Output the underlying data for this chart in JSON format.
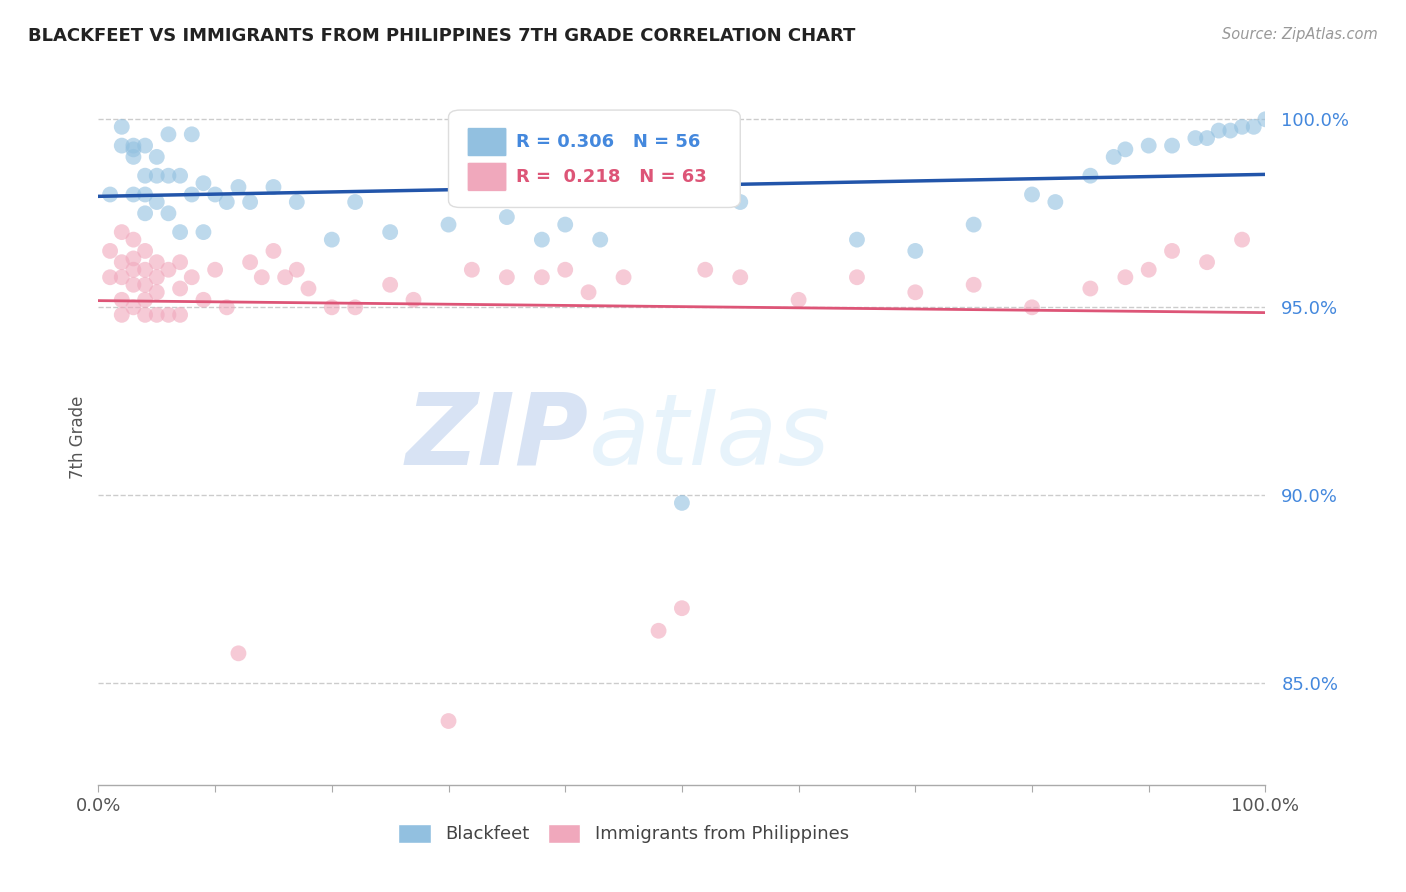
{
  "title": "BLACKFEET VS IMMIGRANTS FROM PHILIPPINES 7TH GRADE CORRELATION CHART",
  "source_text": "Source: ZipAtlas.com",
  "ylabel": "7th Grade",
  "watermark_zip": "ZIP",
  "watermark_atlas": "atlas",
  "legend_blue_label": "Blackfeet",
  "legend_pink_label": "Immigrants from Philippines",
  "R_blue": 0.306,
  "N_blue": 56,
  "R_pink": 0.218,
  "N_pink": 63,
  "blue_color": "#92C0E0",
  "pink_color": "#F0A8BC",
  "trend_blue_color": "#2255AA",
  "trend_pink_color": "#DD5577",
  "xlim": [
    0.0,
    1.0
  ],
  "ylim": [
    0.823,
    1.008
  ],
  "yticks": [
    0.85,
    0.9,
    0.95,
    1.0
  ],
  "ytick_labels": [
    "85.0%",
    "90.0%",
    "95.0%",
    "100.0%"
  ],
  "blue_x": [
    0.01,
    0.02,
    0.02,
    0.03,
    0.03,
    0.03,
    0.03,
    0.04,
    0.04,
    0.04,
    0.04,
    0.05,
    0.05,
    0.05,
    0.06,
    0.06,
    0.06,
    0.07,
    0.07,
    0.08,
    0.08,
    0.09,
    0.09,
    0.1,
    0.11,
    0.12,
    0.13,
    0.15,
    0.17,
    0.2,
    0.22,
    0.25,
    0.3,
    0.35,
    0.38,
    0.4,
    0.43,
    0.5,
    0.55,
    0.65,
    0.7,
    0.75,
    0.8,
    0.82,
    0.85,
    0.87,
    0.88,
    0.9,
    0.92,
    0.94,
    0.95,
    0.96,
    0.97,
    0.98,
    0.99,
    1.0
  ],
  "blue_y": [
    0.98,
    0.998,
    0.993,
    0.993,
    0.992,
    0.98,
    0.99,
    0.993,
    0.985,
    0.98,
    0.975,
    0.985,
    0.99,
    0.978,
    0.996,
    0.985,
    0.975,
    0.985,
    0.97,
    0.996,
    0.98,
    0.983,
    0.97,
    0.98,
    0.978,
    0.982,
    0.978,
    0.982,
    0.978,
    0.968,
    0.978,
    0.97,
    0.972,
    0.974,
    0.968,
    0.972,
    0.968,
    0.898,
    0.978,
    0.968,
    0.965,
    0.972,
    0.98,
    0.978,
    0.985,
    0.99,
    0.992,
    0.993,
    0.993,
    0.995,
    0.995,
    0.997,
    0.997,
    0.998,
    0.998,
    1.0
  ],
  "pink_x": [
    0.01,
    0.01,
    0.02,
    0.02,
    0.02,
    0.02,
    0.02,
    0.03,
    0.03,
    0.03,
    0.03,
    0.03,
    0.04,
    0.04,
    0.04,
    0.04,
    0.04,
    0.05,
    0.05,
    0.05,
    0.05,
    0.06,
    0.06,
    0.07,
    0.07,
    0.07,
    0.08,
    0.09,
    0.1,
    0.11,
    0.12,
    0.13,
    0.14,
    0.15,
    0.16,
    0.17,
    0.18,
    0.2,
    0.22,
    0.25,
    0.27,
    0.3,
    0.32,
    0.35,
    0.38,
    0.4,
    0.42,
    0.45,
    0.48,
    0.5,
    0.52,
    0.55,
    0.6,
    0.65,
    0.7,
    0.75,
    0.8,
    0.85,
    0.88,
    0.9,
    0.92,
    0.95,
    0.98
  ],
  "pink_y": [
    0.965,
    0.958,
    0.97,
    0.962,
    0.958,
    0.952,
    0.948,
    0.968,
    0.963,
    0.96,
    0.956,
    0.95,
    0.965,
    0.96,
    0.956,
    0.952,
    0.948,
    0.962,
    0.958,
    0.954,
    0.948,
    0.96,
    0.948,
    0.962,
    0.955,
    0.948,
    0.958,
    0.952,
    0.96,
    0.95,
    0.858,
    0.962,
    0.958,
    0.965,
    0.958,
    0.96,
    0.955,
    0.95,
    0.95,
    0.956,
    0.952,
    0.84,
    0.96,
    0.958,
    0.958,
    0.96,
    0.954,
    0.958,
    0.864,
    0.87,
    0.96,
    0.958,
    0.952,
    0.958,
    0.954,
    0.956,
    0.95,
    0.955,
    0.958,
    0.96,
    0.965,
    0.962,
    0.968
  ]
}
